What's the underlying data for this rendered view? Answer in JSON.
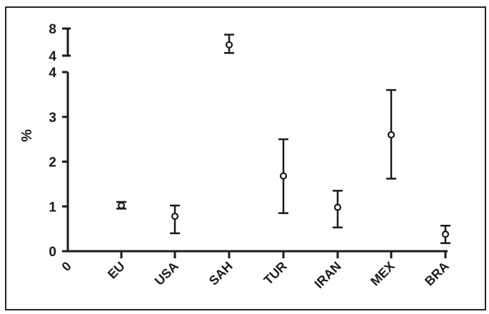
{
  "chart_data": {
    "type": "scatter",
    "ylabel": "%",
    "origin_label": "0",
    "categories": [
      "EU",
      "USA",
      "SAH",
      "TUR",
      "IRAN",
      "MEX",
      "BRA"
    ],
    "points": [
      {
        "category": "EU",
        "mean": 1.02,
        "lower": 0.95,
        "upper": 1.1
      },
      {
        "category": "USA",
        "mean": 0.78,
        "lower": 0.4,
        "upper": 1.02
      },
      {
        "category": "SAH",
        "mean": 5.6,
        "lower": 4.4,
        "upper": 7.1
      },
      {
        "category": "TUR",
        "mean": 1.68,
        "lower": 0.85,
        "upper": 2.5
      },
      {
        "category": "IRAN",
        "mean": 0.98,
        "lower": 0.53,
        "upper": 1.35
      },
      {
        "category": "MEX",
        "mean": 2.6,
        "lower": 1.62,
        "upper": 3.6
      },
      {
        "category": "BRA",
        "mean": 0.38,
        "lower": 0.18,
        "upper": 0.57
      }
    ],
    "y_axis": {
      "broken": true,
      "lower_segment": {
        "ylim": [
          0,
          4
        ],
        "ticks": [
          "0",
          "1",
          "2",
          "3",
          "4"
        ]
      },
      "upper_segment": {
        "ylim": [
          4,
          8
        ],
        "ticks": [
          "4",
          "8"
        ]
      }
    },
    "marker": "open-circle",
    "error_bars": true,
    "grid": false,
    "legend": "none",
    "colors": {
      "ink": "#1a1a1a",
      "frame": "#222222",
      "background": "#ffffff"
    }
  }
}
